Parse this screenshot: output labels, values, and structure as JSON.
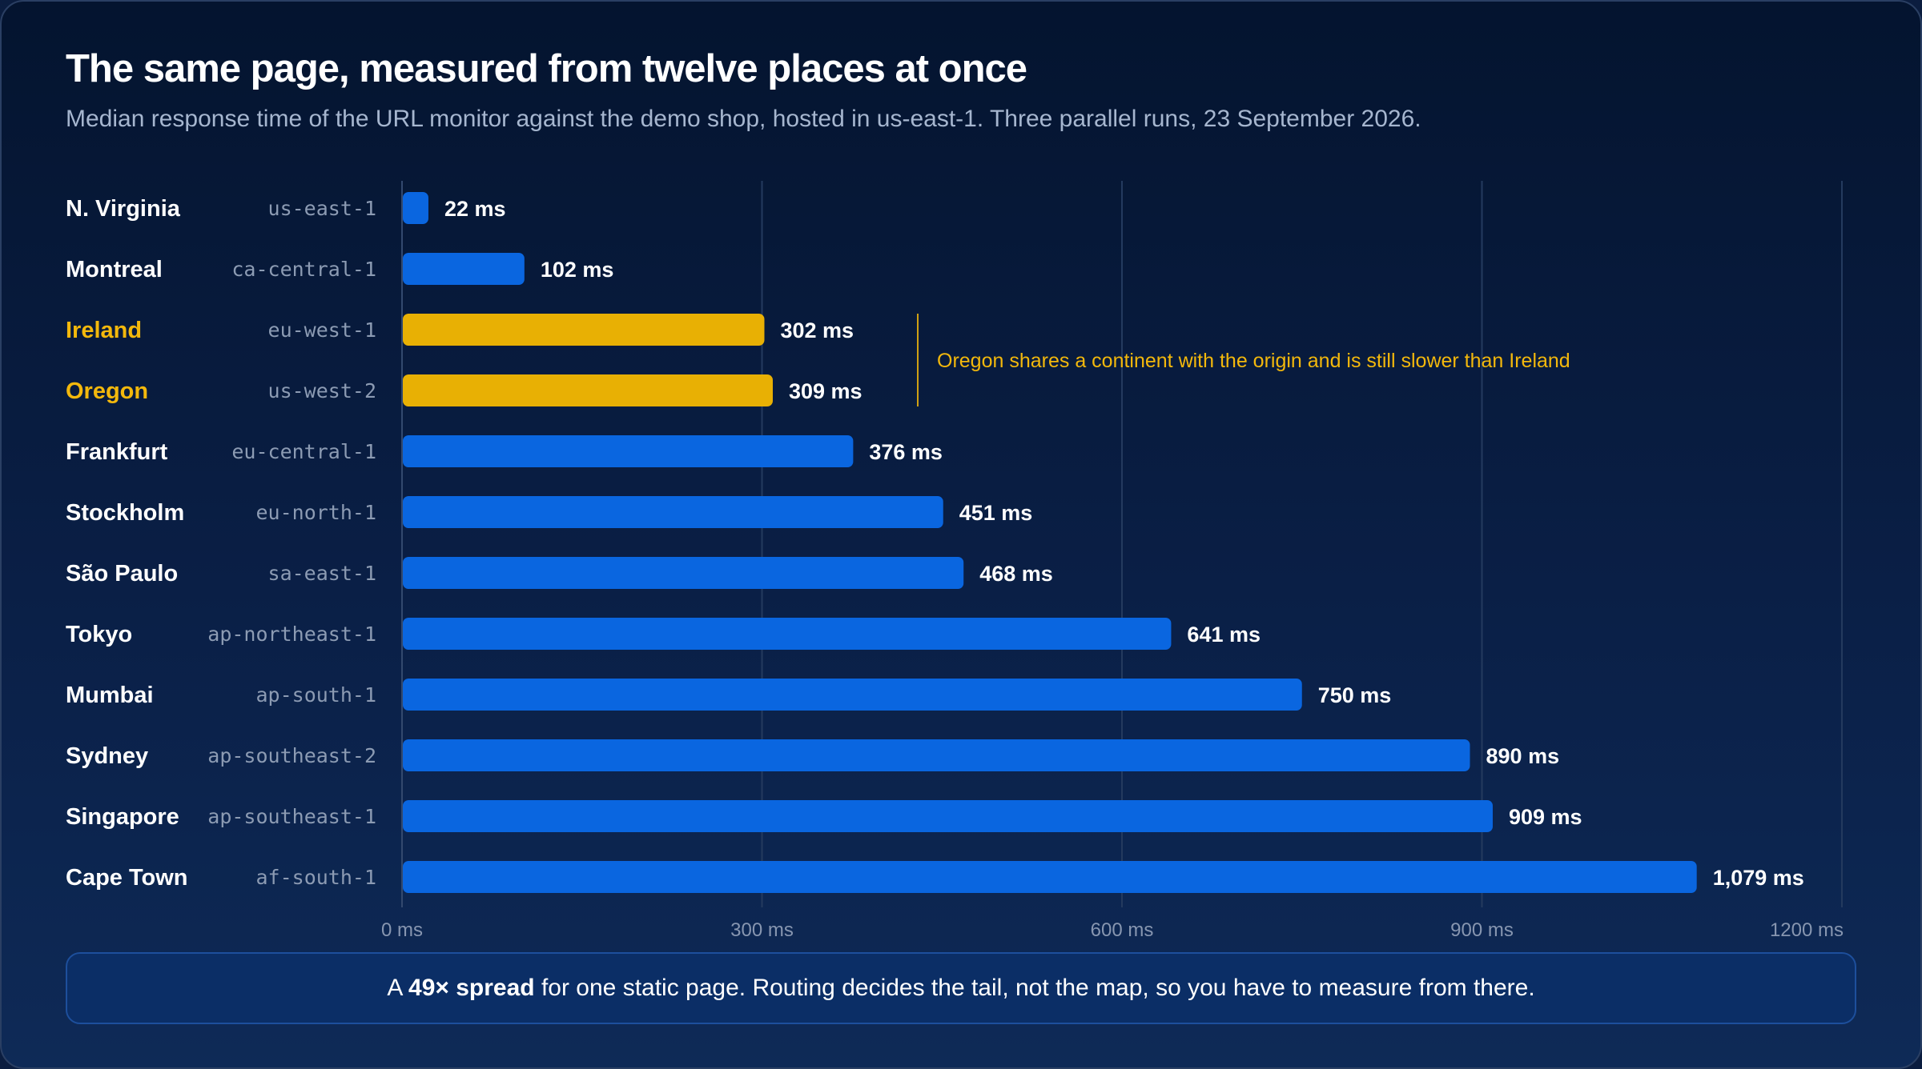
{
  "header": {
    "title": "The same page, measured from twelve places at once",
    "subtitle": "Median response time of the URL monitor against the demo shop, hosted in us-east-1. Three parallel runs, 23 September 2026."
  },
  "colors": {
    "bar_default": "#0a66e0",
    "bar_highlight": "#e8b004",
    "label_default": "#ffffff",
    "label_highlight": "#f3b80c",
    "grid": "#243a5e"
  },
  "chart_data": {
    "type": "bar",
    "orientation": "horizontal",
    "categories": [
      "N. Virginia",
      "Montreal",
      "Ireland",
      "Oregon",
      "Frankfurt",
      "Stockholm",
      "São Paulo",
      "Tokyo",
      "Mumbai",
      "Sydney",
      "Singapore",
      "Cape Town"
    ],
    "region_codes": [
      "us-east-1",
      "ca-central-1",
      "eu-west-1",
      "us-west-2",
      "eu-central-1",
      "eu-north-1",
      "sa-east-1",
      "ap-northeast-1",
      "ap-south-1",
      "ap-southeast-2",
      "ap-southeast-1",
      "af-south-1"
    ],
    "values": [
      22,
      102,
      302,
      309,
      376,
      451,
      468,
      641,
      750,
      890,
      909,
      1079
    ],
    "value_labels": [
      "22 ms",
      "102 ms",
      "302 ms",
      "309 ms",
      "376 ms",
      "451 ms",
      "468 ms",
      "641 ms",
      "750 ms",
      "890 ms",
      "909 ms",
      "1,079 ms"
    ],
    "highlighted": [
      "Ireland",
      "Oregon"
    ],
    "xlim": [
      0,
      1200
    ],
    "xticks": [
      0,
      300,
      600,
      900,
      1200
    ],
    "xtick_labels": [
      "0 ms",
      "300 ms",
      "600 ms",
      "900 ms",
      "1200 ms"
    ],
    "grid": true,
    "annotation": "Oregon shares a continent with the origin and is still slower than Ireland"
  },
  "callout": {
    "prefix": "A ",
    "bold": "49× spread",
    "suffix": " for one static page. Routing decides the tail, not the map, so you have to measure from there."
  }
}
